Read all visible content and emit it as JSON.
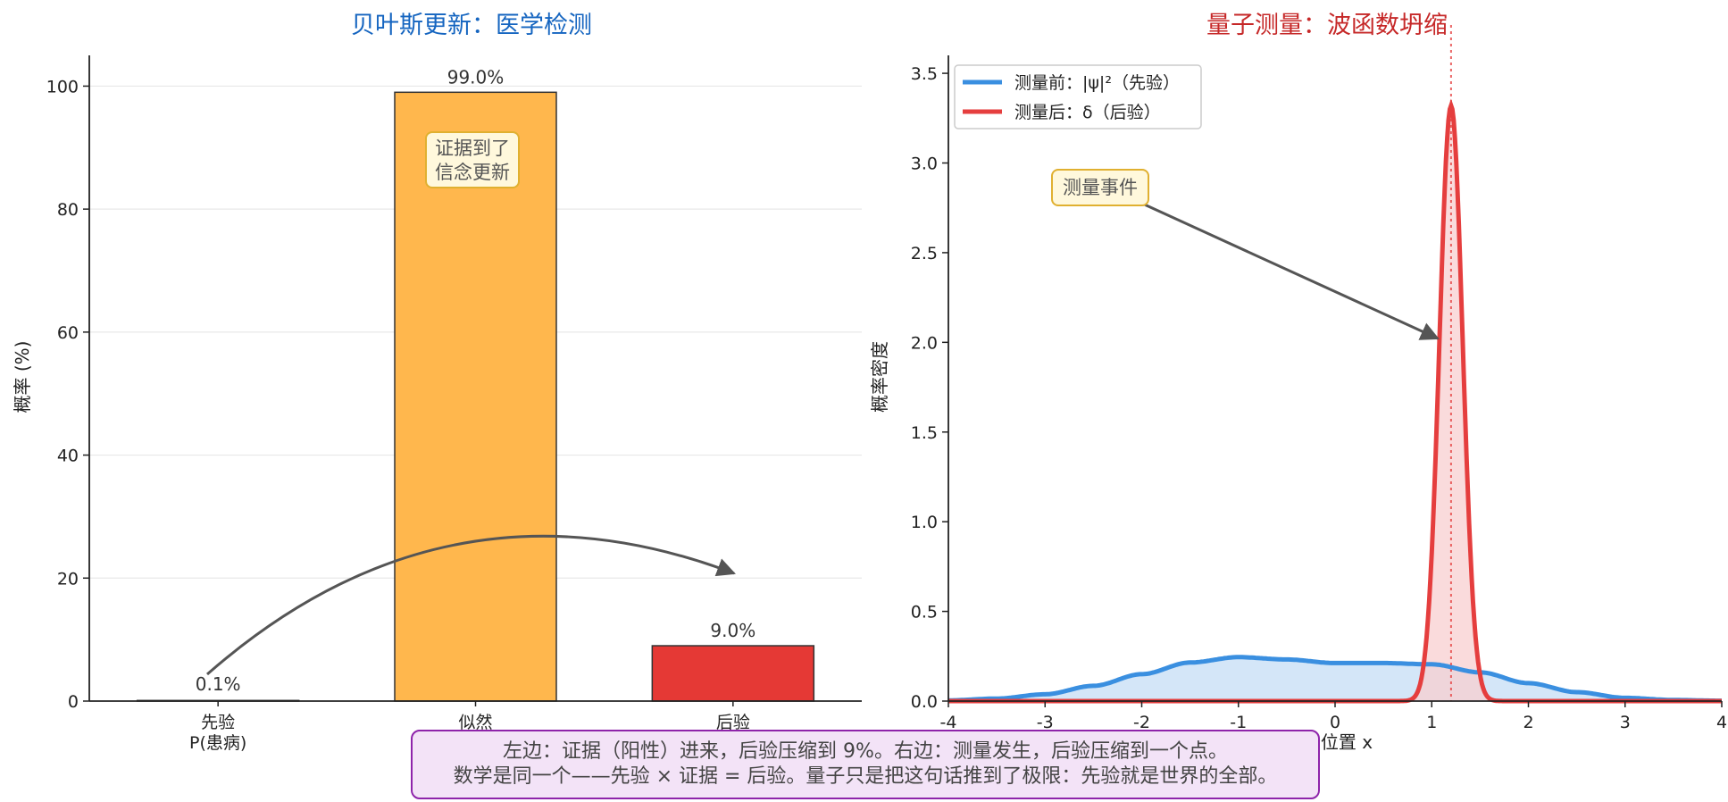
{
  "colors": {
    "left_title": "#1565c0",
    "right_title": "#c62828",
    "prior_bar": "#e53935",
    "likelihood_bar": "#ffb74d",
    "posterior_bar": "#e53935",
    "before_line": "#3a8fe0",
    "before_fill": "#cfe3f7",
    "after_line": "#e53e3e",
    "after_fill": "#f8cfd0",
    "arrow": "#555555",
    "note_fill": "#fff8dc",
    "note_border": "#e0b030"
  },
  "chart_data": [
    {
      "type": "bar",
      "title": "贝叶斯更新：医学检测",
      "ylabel": "概率 (%)",
      "xlabel": "",
      "ylim": [
        0,
        105
      ],
      "yticks": [
        0,
        20,
        40,
        60,
        80,
        100
      ],
      "grid": "horizontal",
      "categories": [
        {
          "label": "先验",
          "sublabel": "P(患病)"
        },
        {
          "label": "似然",
          "sublabel": ""
        },
        {
          "label": "后验",
          "sublabel": ""
        }
      ],
      "values": [
        0.1,
        99.0,
        9.0
      ],
      "value_labels": [
        "0.1%",
        "99.0%",
        "9.0%"
      ],
      "annotations": {
        "bar_note_line1": "证据到了",
        "bar_note_line2": "信念更新"
      }
    },
    {
      "type": "line",
      "title": "量子测量：波函数坍缩",
      "xlabel": "位置 x",
      "ylabel": "概率密度",
      "xlim": [
        -4,
        4
      ],
      "ylim": [
        0,
        3.6
      ],
      "xticks": [
        -4,
        -3,
        -2,
        -1,
        0,
        1,
        2,
        3,
        4
      ],
      "yticks": [
        0.0,
        0.5,
        1.0,
        1.5,
        2.0,
        2.5,
        3.0,
        3.5
      ],
      "legend_position": "top-left",
      "series": [
        {
          "name": "测量前：|ψ|²（先验）",
          "x": [
            -4.0,
            -3.5,
            -3.0,
            -2.5,
            -2.0,
            -1.5,
            -1.0,
            -0.5,
            0.0,
            0.5,
            1.0,
            1.5,
            2.0,
            2.5,
            3.0,
            3.5,
            4.0
          ],
          "y": [
            0.004,
            0.014,
            0.038,
            0.085,
            0.15,
            0.215,
            0.245,
            0.232,
            0.212,
            0.212,
            0.205,
            0.16,
            0.1,
            0.05,
            0.018,
            0.006,
            0.002
          ]
        },
        {
          "name": "测量后：δ（后验）",
          "peak_x": 1.2,
          "peak_y": 3.32,
          "width_sigma": 0.12
        }
      ],
      "vline_x": 1.2,
      "annotations": {
        "event_label": "测量事件"
      }
    }
  ],
  "footer": {
    "line1": "左边：证据（阳性）进来，后验压缩到 9%。右边：测量发生，后验压缩到一个点。",
    "line2": "数学是同一个——先验 × 证据 = 后验。量子只是把这句话推到了极限：先验就是世界的全部。"
  }
}
